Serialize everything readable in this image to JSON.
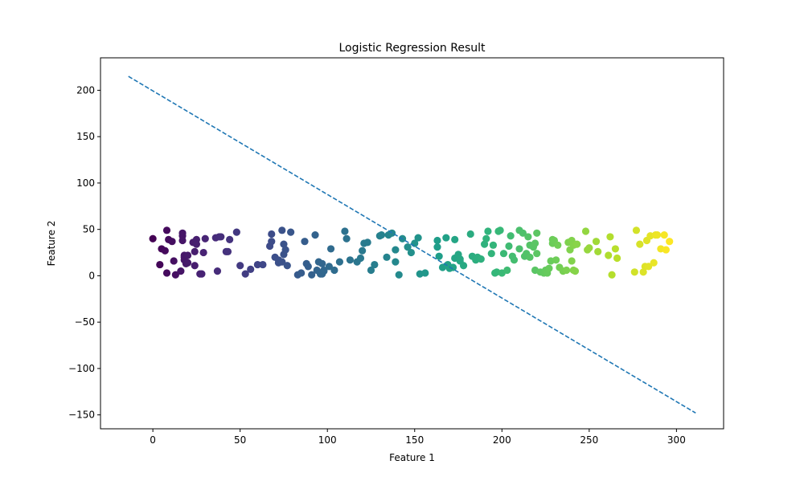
{
  "chart_data": {
    "type": "scatter",
    "title": "Logistic Regression Result",
    "xlabel": "Feature 1",
    "ylabel": "Feature 2",
    "xlim": [
      -30,
      327
    ],
    "ylim": [
      -165,
      235
    ],
    "xticks": [
      0,
      50,
      100,
      150,
      200,
      250,
      300
    ],
    "yticks": [
      -150,
      -100,
      -50,
      0,
      50,
      100,
      150,
      200
    ],
    "grid": false,
    "colormap": "viridis",
    "colors": {
      "line": "#1f77b4",
      "axes": "#000000",
      "background": "#ffffff"
    },
    "decision_boundary": {
      "style": "dashed",
      "x": [
        -14,
        311
      ],
      "y": [
        215,
        -148
      ]
    },
    "points": {
      "x": [
        0,
        4,
        5,
        7,
        8,
        8,
        9,
        11,
        12,
        13,
        16,
        17,
        17,
        17,
        18,
        18,
        18,
        19,
        20,
        20,
        23,
        24,
        24,
        25,
        25,
        27,
        28,
        29,
        30,
        36,
        37,
        38,
        39,
        42,
        43,
        44,
        48,
        50,
        53,
        56,
        60,
        63,
        67,
        68,
        68,
        70,
        72,
        72,
        74,
        74,
        75,
        75,
        76,
        77,
        79,
        83,
        85,
        87,
        88,
        89,
        91,
        93,
        94,
        95,
        96,
        97,
        97,
        98,
        98,
        101,
        102,
        104,
        107,
        110,
        111,
        113,
        117,
        119,
        120,
        121,
        123,
        125,
        127,
        130,
        131,
        134,
        135,
        137,
        139,
        139,
        141,
        143,
        146,
        148,
        150,
        152,
        153,
        156,
        163,
        163,
        164,
        166,
        168,
        169,
        170,
        172,
        173,
        173,
        175,
        176,
        176,
        178,
        182,
        183,
        185,
        186,
        188,
        190,
        191,
        192,
        194,
        195,
        196,
        197,
        198,
        199,
        200,
        201,
        203,
        204,
        205,
        206,
        207,
        210,
        210,
        212,
        213,
        214,
        215,
        216,
        216,
        218,
        219,
        219,
        220,
        220,
        222,
        224,
        225,
        226,
        227,
        228,
        229,
        229,
        230,
        231,
        232,
        233,
        235,
        237,
        238,
        239,
        240,
        240,
        241,
        241,
        242,
        243,
        248,
        249,
        250,
        254,
        255,
        261,
        262,
        263,
        265,
        266,
        276,
        277,
        279,
        281,
        282,
        283,
        284,
        285,
        287,
        288,
        289,
        291,
        293,
        294,
        296
      ],
      "y": [
        40,
        12,
        29,
        27,
        3,
        49,
        39,
        37,
        16,
        1,
        5,
        46,
        43,
        38,
        22,
        20,
        17,
        13,
        14,
        22,
        36,
        11,
        26,
        39,
        34,
        2,
        2,
        25,
        40,
        41,
        5,
        42,
        42,
        26,
        26,
        39,
        47,
        11,
        2,
        7,
        12,
        12,
        32,
        37,
        45,
        20,
        14,
        17,
        15,
        49,
        34,
        23,
        28,
        11,
        47,
        1,
        3,
        37,
        13,
        10,
        1,
        44,
        6,
        15,
        2,
        13,
        2,
        6,
        5,
        10,
        29,
        6,
        15,
        48,
        40,
        17,
        15,
        19,
        27,
        35,
        36,
        6,
        12,
        43,
        44,
        20,
        44,
        46,
        28,
        15,
        1,
        40,
        31,
        25,
        35,
        41,
        2,
        3,
        38,
        31,
        21,
        9,
        41,
        12,
        8,
        9,
        19,
        39,
        23,
        18,
        16,
        11,
        45,
        21,
        17,
        20,
        18,
        34,
        40,
        48,
        24,
        33,
        3,
        4,
        48,
        49,
        3,
        24,
        6,
        32,
        43,
        21,
        17,
        29,
        49,
        46,
        21,
        24,
        42,
        20,
        33,
        31,
        6,
        35,
        46,
        24,
        4,
        3,
        6,
        3,
        8,
        16,
        39,
        35,
        38,
        17,
        33,
        9,
        5,
        6,
        36,
        28,
        16,
        38,
        33,
        6,
        5,
        34,
        48,
        28,
        30,
        37,
        26,
        22,
        42,
        1,
        29,
        19,
        4,
        49,
        34,
        4,
        10,
        38,
        10,
        43,
        14,
        44,
        44,
        29,
        44,
        28,
        37
      ]
    }
  }
}
